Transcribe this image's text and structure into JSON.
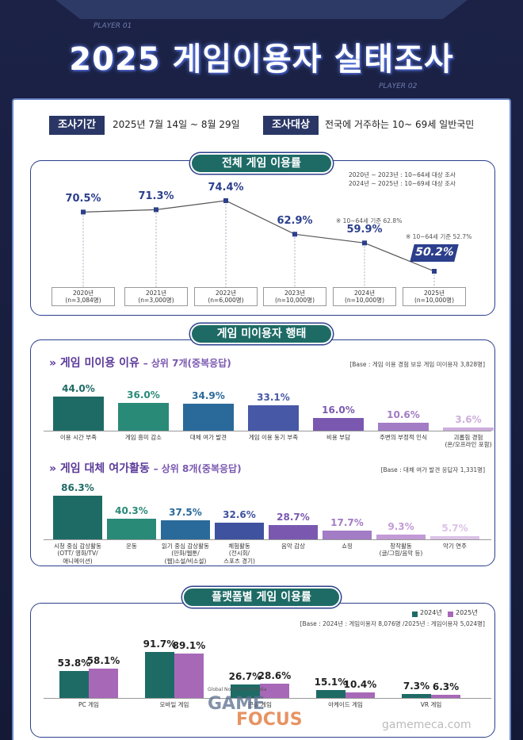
{
  "header": {
    "tag_left": "PLAYER 01",
    "title": "2025 게임이용자 실태조사",
    "tag_right": "PLAYER 02"
  },
  "survey": {
    "period_label": "조사기간",
    "period": "2025년 7월 14일 ~ 8월 29일",
    "target_label": "조사대상",
    "target": "전국에 거주하는 10~ 69세 일반국민"
  },
  "section_title": "게임 미이용자 행태",
  "chart_data": [
    {
      "type": "line",
      "title": "전체 게임 이용률",
      "color": "#2b3f8c",
      "notes": [
        "2020년 ~ 2023년 : 10~64세 대상 조사",
        "2024년 ~ 2025년 : 10~69세 대상 조사"
      ],
      "categories": [
        "2020년",
        "2021년",
        "2022년",
        "2023년",
        "2024년",
        "2025년"
      ],
      "sample_sizes": [
        "(n=3,084명)",
        "(n=3,000명)",
        "(n=6,000명)",
        "(n=10,000명)",
        "(n=10,000명)",
        "(n=10,000명)"
      ],
      "values": [
        70.5,
        71.3,
        74.4,
        62.9,
        59.9,
        50.2
      ],
      "value_labels": [
        "70.5%",
        "71.3%",
        "74.4%",
        "62.9%",
        "59.9%",
        "50.2%"
      ],
      "annotations": [
        "※ 10~64세 기준 62.8%",
        "※ 10~64세 기준 52.7%"
      ]
    },
    {
      "type": "bar",
      "title": "게임 미이용 이유",
      "subtitle": "– 상위 7개(중복응답)",
      "base": "[Base : 게임 이용 경험 보유 게임 미이용자 3,828명]",
      "categories": [
        "이용 시간 부족",
        "게임 흥미 감소",
        "대체 여가 발견",
        "게임 이용 동기 부족",
        "비용 부담",
        "주변의 부정적 인식",
        "괴롭힘 경험\n(온/오프라인 포함)"
      ],
      "values": [
        44.0,
        36.0,
        34.9,
        33.1,
        16.0,
        10.6,
        3.6
      ],
      "value_labels": [
        "44.0%",
        "36.0%",
        "34.9%",
        "33.1%",
        "16.0%",
        "10.6%",
        "3.6%"
      ],
      "colors": [
        "#1e6b66",
        "#2a8a78",
        "#2a6a9a",
        "#4658a6",
        "#7a58b0",
        "#a27cc4",
        "#cdaedc"
      ]
    },
    {
      "type": "bar",
      "title": "게임 대체 여가활동",
      "subtitle": "– 상위 8개(중복응답)",
      "base": "[Base : 대체 여가 발견 응답자 1,331명]",
      "categories": [
        "시청 중심 감상활동\n(OTT/ 영화/TV/\n애니메이션)",
        "운동",
        "읽기 중심 감상활동\n(만화/웹툰/\n(웹)소설/비소설)",
        "체험활동\n(전시회/\n스포츠 경기)",
        "음악 감상",
        "쇼핑",
        "창작활동\n(글/그림/음악 등)",
        "악기 연주"
      ],
      "values": [
        86.3,
        40.3,
        37.5,
        32.6,
        28.7,
        17.7,
        9.3,
        5.7
      ],
      "value_labels": [
        "86.3%",
        "40.3%",
        "37.5%",
        "32.6%",
        "28.7%",
        "17.7%",
        "9.3%",
        "5.7%"
      ],
      "colors": [
        "#1e6b66",
        "#2a8a78",
        "#2a6a9a",
        "#3f52a0",
        "#7a58b0",
        "#a27cc4",
        "#c39ad6",
        "#dcc2e6"
      ]
    },
    {
      "type": "grouped_bar",
      "title": "플랫폼별 게임 이용률",
      "base": "[Base : 2024년 : 게임이용자 8,076명 /2025년 : 게임이용자 5,024명]",
      "categories": [
        "PC 게임",
        "모바일 게임",
        "콘솔 게임",
        "아케이드 게임",
        "VR 게임"
      ],
      "series": [
        {
          "name": "2024년",
          "color": "#1e6b66",
          "values": [
            53.8,
            91.7,
            26.7,
            15.1,
            7.3
          ],
          "value_labels": [
            "53.8%",
            "91.7%",
            "26.7%",
            "15.1%",
            "7.3%"
          ]
        },
        {
          "name": "2025년",
          "color": "#a868b8",
          "values": [
            58.1,
            89.1,
            28.6,
            10.4,
            6.3
          ],
          "value_labels": [
            "58.1%",
            "89.1%",
            "28.6%",
            "10.4%",
            "6.3%"
          ]
        }
      ]
    }
  ],
  "footer": {
    "tagline": "Global No.1 Game Media",
    "brand_top": "GAME",
    "brand_bottom": "FOCUS",
    "site": "gamemeca.com"
  }
}
